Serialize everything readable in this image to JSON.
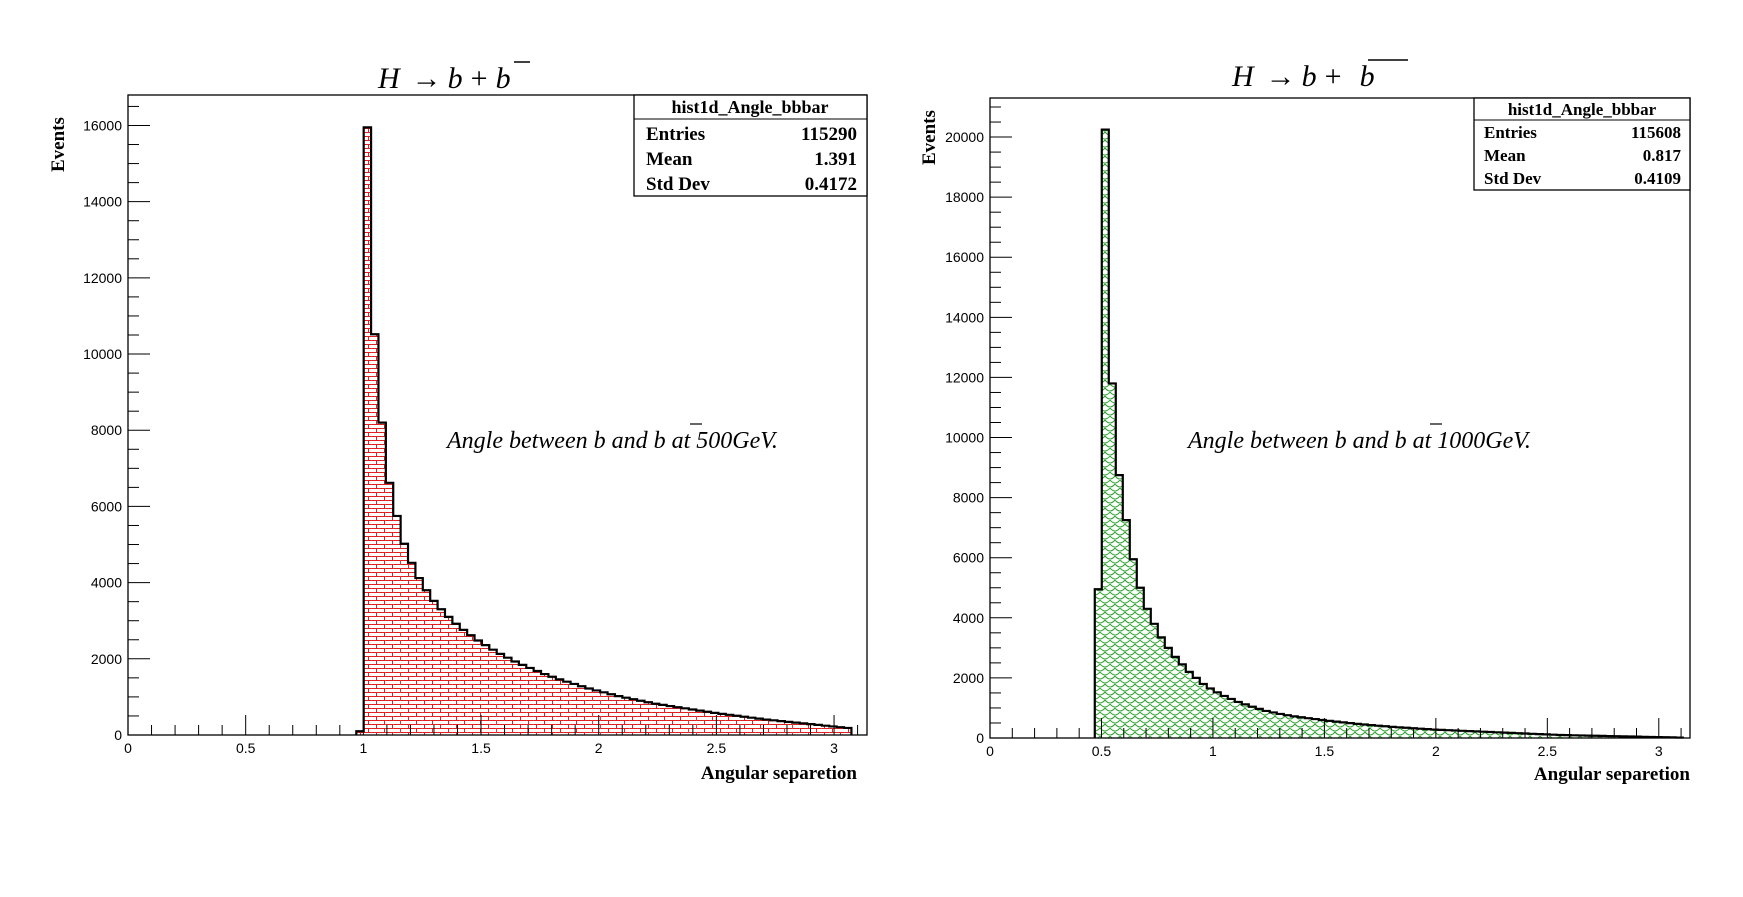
{
  "chart_data": [
    {
      "type": "bar",
      "title": "H → b + b̄",
      "title_parts": {
        "lhs": "H",
        "arrow": "→",
        "b": "b",
        "plus": "+",
        "bbar": "b"
      },
      "xlabel": "Angular separetion",
      "ylabel": "Events",
      "xlim": [
        0,
        3.14
      ],
      "ylim": [
        0,
        16800
      ],
      "xticks": [
        0,
        0.5,
        1,
        1.5,
        2,
        2.5,
        3
      ],
      "xtick_labels": [
        "0",
        "0.5",
        "1",
        "1.5",
        "2",
        "2.5",
        "3"
      ],
      "yticks": [
        0,
        2000,
        4000,
        6000,
        8000,
        10000,
        12000,
        14000,
        16000
      ],
      "ytick_labels": [
        "0",
        "2000",
        "4000",
        "6000",
        "8000",
        "10000",
        "12000",
        "14000",
        "16000"
      ],
      "bin_edges_start": 0.97,
      "bin_width": 0.0314,
      "values": [
        100,
        15950,
        10520,
        8200,
        6620,
        5750,
        5020,
        4520,
        4120,
        3800,
        3520,
        3300,
        3100,
        2920,
        2760,
        2620,
        2480,
        2360,
        2240,
        2130,
        2030,
        1930,
        1840,
        1760,
        1680,
        1600,
        1530,
        1460,
        1400,
        1340,
        1280,
        1220,
        1170,
        1120,
        1070,
        1020,
        980,
        940,
        900,
        860,
        820,
        790,
        760,
        730,
        700,
        670,
        640,
        610,
        580,
        555,
        530,
        505,
        480,
        455,
        430,
        405,
        385,
        365,
        345,
        325,
        305,
        285,
        265,
        245,
        225,
        205,
        185
      ],
      "fill_color": "#e02020",
      "pattern": "brick",
      "stats": {
        "name": "hist1d_Angle_bbbar",
        "rows": [
          {
            "label": "Entries",
            "value": "115290"
          },
          {
            "label": "Mean",
            "value": "1.391"
          },
          {
            "label": "Std Dev",
            "value": "0.4172"
          }
        ]
      },
      "annotation": {
        "prefix": "Angle between b and ",
        "bbar": "b",
        "suffix": " at 500GeV."
      }
    },
    {
      "type": "bar",
      "title": "H → b + b̄",
      "title_parts": {
        "lhs": "H",
        "arrow": "→",
        "b": "b",
        "plus": "+",
        "bbar": "b"
      },
      "xlabel": "Angular separetion",
      "ylabel": "Events",
      "xlim": [
        0,
        3.14
      ],
      "ylim": [
        0,
        21300
      ],
      "xticks": [
        0,
        0.5,
        1,
        1.5,
        2,
        2.5,
        3
      ],
      "xtick_labels": [
        "0",
        "0.5",
        "1",
        "1.5",
        "2",
        "2.5",
        "3"
      ],
      "yticks": [
        0,
        2000,
        4000,
        6000,
        8000,
        10000,
        12000,
        14000,
        16000,
        18000,
        20000
      ],
      "ytick_labels": [
        "0",
        "2000",
        "4000",
        "6000",
        "8000",
        "10000",
        "12000",
        "14000",
        "16000",
        "18000",
        "20000"
      ],
      "bin_edges_start": 0.47,
      "bin_width": 0.0314,
      "values": [
        4950,
        20250,
        11800,
        8750,
        7250,
        5950,
        5000,
        4300,
        3800,
        3350,
        3000,
        2700,
        2450,
        2200,
        2000,
        1800,
        1650,
        1520,
        1400,
        1300,
        1200,
        1120,
        1040,
        970,
        900,
        850,
        800,
        760,
        720,
        690,
        660,
        630,
        600,
        570,
        545,
        520,
        495,
        470,
        450,
        430,
        410,
        390,
        370,
        355,
        340,
        325,
        310,
        295,
        280,
        270,
        260,
        250,
        240,
        230,
        220,
        210,
        200,
        190,
        180,
        170,
        160,
        150,
        140,
        130,
        120,
        110,
        100,
        95,
        90,
        85,
        80,
        75,
        70,
        65,
        60,
        55,
        50,
        45,
        40,
        35,
        30,
        25,
        20,
        15
      ],
      "fill_color": "#2aa02a",
      "pattern": "scale",
      "stats": {
        "name": "hist1d_Angle_bbbar",
        "rows": [
          {
            "label": "Entries",
            "value": "115608"
          },
          {
            "label": "Mean",
            "value": "0.817"
          },
          {
            "label": "Std Dev",
            "value": "0.4109"
          }
        ]
      },
      "annotation": {
        "prefix": "Angle between b and ",
        "bbar": "b",
        "suffix": " at 1000GeV."
      }
    }
  ]
}
